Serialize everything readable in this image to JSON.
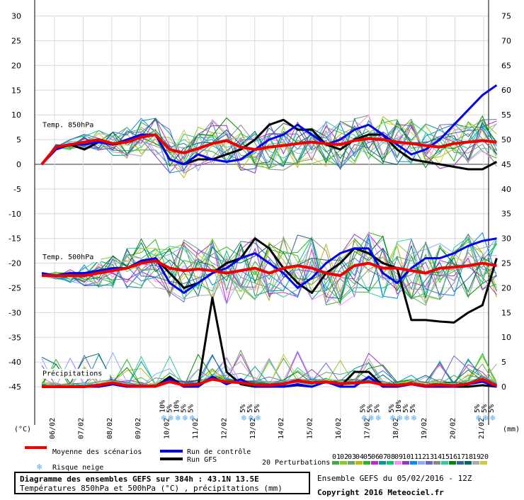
{
  "chart_data": {
    "type": "line",
    "title": "Diagramme des ensembles GEFS sur 384h : 43.1N 13.5E",
    "subtitle": "Températures 850hPa et 500hPa (°C) , précipitations (mm)",
    "left_axis": {
      "unit": "(°C)",
      "ticks": [
        30,
        25,
        20,
        15,
        10,
        5,
        0,
        -5,
        -10,
        -15,
        -20,
        -25,
        -30,
        -35,
        -40,
        -45
      ]
    },
    "right_axis": {
      "unit": "(mm)",
      "ticks": [
        75,
        70,
        65,
        60,
        55,
        50,
        45,
        40,
        35,
        30,
        25,
        20,
        15,
        10,
        5,
        0
      ]
    },
    "x_ticks": [
      "06/02",
      "07/02",
      "08/02",
      "09/02",
      "10/02",
      "11/02",
      "12/02",
      "13/02",
      "14/02",
      "15/02",
      "16/02",
      "17/02",
      "18/02",
      "19/02",
      "20/02",
      "21/02"
    ],
    "grid": true,
    "panel_labels": [
      "Temp. 850hPa",
      "Temp. 500hPa",
      "Précipitations"
    ],
    "snow_risk": [
      {
        "day": 4.2,
        "pcts": [
          "10%",
          "5%",
          "10%",
          "5%",
          "5%"
        ]
      },
      {
        "day": 7.0,
        "pcts": [
          "5%",
          "5%",
          "5%"
        ]
      },
      {
        "day": 11.2,
        "pcts": [
          "5%",
          "5%",
          "5%"
        ]
      },
      {
        "day": 12.2,
        "pcts": [
          "5%",
          "10%",
          "5%",
          "5%"
        ]
      },
      {
        "day": 15.2,
        "pcts": [
          "5%",
          "5%",
          "5%"
        ]
      }
    ],
    "series": [
      {
        "name": "Moyenne des scénarios",
        "color": "#ee0000",
        "width": 4,
        "t850": [
          0,
          3.5,
          4.0,
          4.5,
          5.0,
          4.2,
          4.5,
          5.5,
          6.0,
          3.0,
          2.3,
          3.2,
          4.2,
          4.8,
          3.5,
          3.0,
          3.5,
          3.8,
          4.2,
          4.5,
          4.2,
          4.0,
          4.8,
          5.2,
          5.0,
          4.5,
          4.2,
          3.8,
          3.5,
          4.2,
          4.5,
          4.8,
          4.5
        ],
        "t500": [
          -22.5,
          -22.5,
          -22.5,
          -22.5,
          -22.0,
          -21.5,
          -21.0,
          -20.0,
          -19.5,
          -21.0,
          -21.5,
          -21.2,
          -21.5,
          -22.0,
          -21.5,
          -21.0,
          -22.0,
          -21.0,
          -20.5,
          -21.0,
          -22.0,
          -22.5,
          -20.5,
          -20.0,
          -21.0,
          -21.0,
          -21.5,
          -22.0,
          -21.0,
          -20.8,
          -20.5,
          -20.0,
          -20.5
        ],
        "precip": [
          0,
          0,
          0,
          0,
          0.3,
          0.8,
          0.2,
          0.1,
          0.1,
          1.0,
          0.3,
          0.5,
          1.5,
          1.0,
          0.8,
          0.4,
          0.3,
          0.6,
          1.2,
          0.8,
          1.0,
          0.6,
          0.8,
          1.0,
          0.4,
          0.3,
          0.6,
          0.2,
          0.4,
          0.2,
          0.6,
          1.5,
          0.2
        ]
      },
      {
        "name": "Run de contrôle",
        "color": "#0000ee",
        "width": 3,
        "t850": [
          0,
          3.0,
          4.0,
          4.0,
          4.5,
          4.0,
          5.0,
          6.0,
          6.0,
          1.0,
          0.0,
          2.0,
          1.0,
          0.5,
          1.0,
          3.0,
          5.0,
          6.0,
          8.0,
          6.0,
          4.0,
          5.0,
          7.0,
          8.0,
          6.0,
          4.0,
          2.0,
          3.0,
          5.0,
          8.0,
          11.0,
          14.0,
          16.0
        ],
        "t500": [
          -22.0,
          -22.5,
          -22.0,
          -22.0,
          -21.5,
          -21.0,
          -21.0,
          -19.5,
          -19.0,
          -24.0,
          -26.0,
          -24.0,
          -22.0,
          -21.0,
          -19.0,
          -18.0,
          -20.0,
          -22.0,
          -25.0,
          -23.0,
          -20.0,
          -18.0,
          -17.0,
          -17.0,
          -22.0,
          -24.0,
          -21.0,
          -19.0,
          -19.0,
          -18.0,
          -16.5,
          -15.5,
          -15.0
        ],
        "precip": [
          0,
          0,
          0,
          0,
          0,
          0.5,
          0,
          0,
          0,
          1.5,
          0,
          0,
          2.0,
          0.5,
          1.5,
          0,
          0,
          0,
          0.5,
          0,
          1.0,
          0,
          0,
          2.0,
          0,
          0,
          0.5,
          0,
          0,
          0,
          0.5,
          1.0,
          0
        ]
      },
      {
        "name": "Run GFS",
        "color": "#000000",
        "width": 3,
        "t850": [
          0,
          3.5,
          4.0,
          3.0,
          4.5,
          4.0,
          4.5,
          5.5,
          6.0,
          1.0,
          0.0,
          1.0,
          1.0,
          2.0,
          3.0,
          5.0,
          8.0,
          9.0,
          7.0,
          7.0,
          4.0,
          3.0,
          5.0,
          6.0,
          6.0,
          3.0,
          1.0,
          0.5,
          0.0,
          -0.5,
          -1.0,
          -1.0,
          0.5
        ],
        "t500": [
          -22.5,
          -22.5,
          -22.5,
          -22.0,
          -22.0,
          -21.5,
          -21.0,
          -20.0,
          -19.0,
          -22.0,
          -25.0,
          -24.0,
          -22.0,
          -20.0,
          -19.0,
          -15.0,
          -17.0,
          -21.0,
          -24.0,
          -26.0,
          -22.0,
          -20.0,
          -17.0,
          -18.0,
          -20.0,
          -21.0,
          -31.5,
          -31.5,
          -31.8,
          -32.0,
          -30.0,
          -28.5,
          -19.0
        ],
        "precip": [
          0,
          0,
          0,
          0,
          0,
          0.5,
          0,
          0,
          0,
          2.0,
          0,
          0,
          18.0,
          3.0,
          0.5,
          0,
          0,
          0,
          0.3,
          0,
          1.0,
          0,
          3.0,
          3.0,
          0.2,
          0,
          0.5,
          0,
          0,
          0,
          0,
          0.3,
          0
        ]
      }
    ],
    "perturbations": {
      "label": "20 Perturbations",
      "numbers": [
        "01",
        "02",
        "03",
        "04",
        "05",
        "06",
        "07",
        "08",
        "09",
        "10",
        "11",
        "12",
        "13",
        "14",
        "15",
        "16",
        "17",
        "18",
        "19",
        "20"
      ],
      "colors": [
        "#44aa44",
        "#88cc22",
        "#66aa66",
        "#bbbb00",
        "#22bb22",
        "#cc22cc",
        "#009999",
        "#00cc66",
        "#ff88ff",
        "#9933cc",
        "#0088ff",
        "#88aaff",
        "#6666cc",
        "#888888",
        "#33cc99",
        "#008800",
        "#336699",
        "#006666",
        "#aaaaaa",
        "#cccc44"
      ]
    }
  },
  "legend": {
    "mean": "Moyenne des scénarios",
    "control": "Run de contrôle",
    "gfs": "Run GFS",
    "snow": "Risque neige"
  },
  "footer": {
    "title": "Diagramme des ensembles GEFS sur 384h : 43.1N 13.5E",
    "subtitle": "Températures 850hPa et 500hPa (°C) , précipitations (mm)",
    "ensemble": "Ensemble GEFS du 05/02/2016 - 12Z",
    "copyright": "Copyright 2016 Meteociel.fr"
  }
}
